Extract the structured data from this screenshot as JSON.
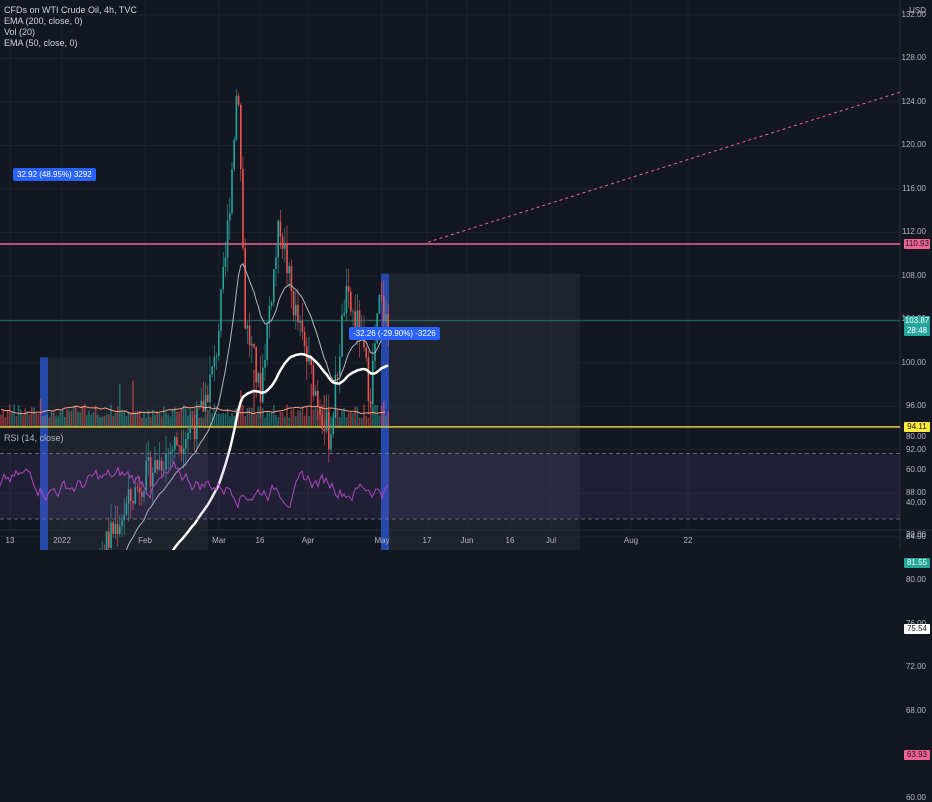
{
  "header": {
    "symbol_line": "CFDs on WTI Crude Oil, 4h, TVC",
    "indicators": [
      "EMA (200, close, 0)",
      "Vol (20)",
      "EMA (50, close, 0)"
    ],
    "currency": "USD"
  },
  "rsi_label": "RSI (14, close)",
  "price_axis": [
    "132.00",
    "128.00",
    "124.00",
    "120.00",
    "116.00",
    "112.00",
    "108.00",
    "104.00",
    "100.00",
    "96.00",
    "92.00",
    "88.00",
    "84.00",
    "80.00",
    "76.00",
    "72.00",
    "68.00",
    "64.00",
    "60.00"
  ],
  "rsi_axis": [
    "80.00",
    "60.00",
    "40.00",
    "20.00"
  ],
  "badges": [
    {
      "text": "110.93",
      "bg": "#f06292",
      "fg": "#131722"
    },
    {
      "text": "103.87",
      "bg": "#26a69a",
      "fg": "#ffffff"
    },
    {
      "text": "28:48",
      "bg": "#26a69a",
      "fg": "#ffffff"
    },
    {
      "text": "94.11",
      "bg": "#ffeb3b",
      "fg": "#131722"
    },
    {
      "text": "81.55",
      "bg": "#26a69a",
      "fg": "#ffffff"
    },
    {
      "text": "75.54",
      "bg": "#ffffff",
      "fg": "#131722"
    },
    {
      "text": "63.93",
      "bg": "#f06292",
      "fg": "#131722"
    }
  ],
  "time_axis": [
    "13",
    "2022",
    "Feb",
    "Mar",
    "16",
    "Apr",
    "May",
    "17",
    "Jun",
    "16",
    "Jul",
    "Aug",
    "22"
  ],
  "measurements": {
    "rise": "32.92 (48.95%) 3292",
    "drop": "-32.26 (-29.90%) -3226"
  },
  "colors": {
    "background": "#131722",
    "up": "#26a69a",
    "down": "#ef5350",
    "ema200": "#ffffff",
    "ema50": "#d1d4dc",
    "resistance": "#f06292",
    "support_yellow": "#ffeb3b",
    "support_teal": "#26a69a",
    "rsi_line": "#9c27b0",
    "measure": "#2962ff"
  }
}
